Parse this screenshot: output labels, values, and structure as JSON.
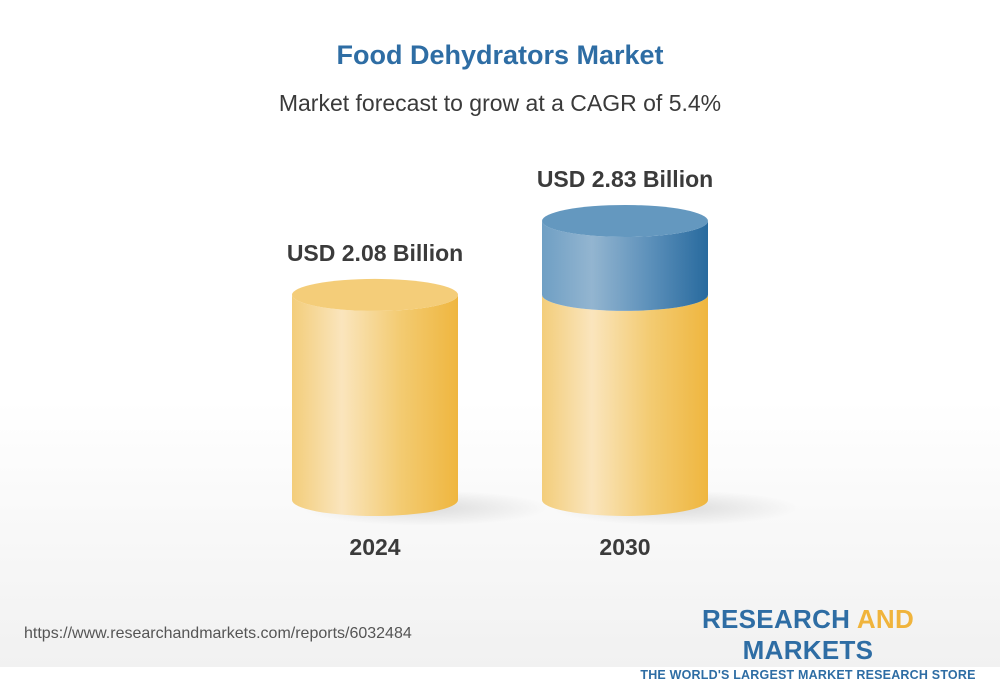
{
  "chart_data": {
    "type": "bar",
    "style": "3d-cylinder",
    "title": "Food Dehydrators Market",
    "subtitle": "Market forecast to grow at a CAGR of 5.4%",
    "categories": [
      "2024",
      "2030"
    ],
    "values": [
      2.08,
      2.83
    ],
    "data_labels": [
      "USD 2.08 Billion",
      "USD 2.83 Billion"
    ],
    "unit": "USD Billion",
    "grid": false,
    "colors": {
      "base": "#f0b843",
      "growth": "#2e6da4",
      "title": "#2e6da4"
    }
  },
  "footer": {
    "url": "https://www.researchandmarkets.com/reports/6032484",
    "logo_word1": "RESEARCH",
    "logo_word2": "AND",
    "logo_word3": "MARKETS",
    "logo_tagline": "THE WORLD'S LARGEST MARKET RESEARCH STORE"
  }
}
